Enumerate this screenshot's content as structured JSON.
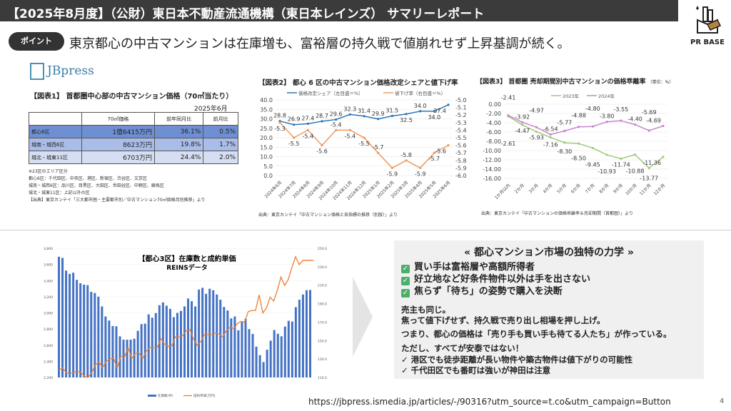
{
  "header": {
    "title": "【2025年8月度】（公財）東日本不動産流通機構（東日本レインズ） サマリーレポート",
    "logo_text": "PR BASE"
  },
  "point": {
    "badge": "ポイント",
    "text": "東京都心の中古マンションは在庫増も、富裕層の持久戦で値崩れせず上昇基調が続く。"
  },
  "source_logo": "JBpress",
  "table1": {
    "title": "【図表1】 首都圏中心部の中古マンション価格（70㎡当たり）",
    "date": "2025年6月",
    "headers": [
      "",
      "70㎡価格",
      "前年同月比",
      "前月比"
    ],
    "rows": [
      [
        "都心6区",
        "1億6415万円",
        "36.1%",
        "0.5%"
      ],
      [
        "城南・城西6区",
        "8623万円",
        "19.8%",
        "1.7%"
      ],
      [
        "城北・城東11区",
        "6703万円",
        "24.4%",
        "2.0%"
      ]
    ],
    "row_colors": [
      "#6e8fd2",
      "#a9bde8",
      "#d5def3"
    ],
    "notes": [
      "※23区のエリア区分",
      "都心6区：千代田区、中央区、港区、新宿区、渋谷区、文京区",
      "城南・城西6区：品川区、目黒区、大田区、世田谷区、中野区、練馬区",
      "城北・城東11区：上記以外の区",
      "【出典】東京カンテイ「三大都市圏・主要都市別／中古マンション70㎡価格月別推移」より"
    ]
  },
  "chart_data": [
    {
      "type": "line",
      "title": "【図表2】 都心 6 区の中古マンション価格改定シェアと値下げ率",
      "categories": [
        "2024年6月",
        "2024年7月",
        "2024年8月",
        "2024年9月",
        "2024年10月",
        "2024年11月",
        "2024年12月",
        "2025年1月",
        "2025年2月",
        "2025年3月",
        "2025年4月",
        "2025年5月",
        "2025年6月"
      ],
      "series": [
        {
          "name": "価格改定シェア（左目盛＝%）",
          "axis": "left",
          "color": "#2e75b6",
          "values": [
            28.8,
            26.9,
            27.4,
            28.7,
            29.6,
            32.3,
            31.4,
            29.9,
            31.5,
            32.5,
            34.0,
            34.0,
            37.4
          ]
        },
        {
          "name": "値下げ率（右目盛＝%）",
          "axis": "right",
          "color": "#ed9a5e",
          "values": [
            -5.3,
            -5.5,
            -5.4,
            -5.6,
            -5.4,
            -5.4,
            -5.5,
            -5.7,
            -5.9,
            -5.8,
            -5.9,
            -5.7,
            -5.6
          ]
        }
      ],
      "ylim": [
        0,
        40
      ],
      "yticks": [
        "40.0",
        "35.0",
        "30.0",
        "25.0",
        "20.0",
        "15.0",
        "10.0",
        "5.0",
        "0.0"
      ],
      "y2lim": [
        -6.0,
        -5.0
      ],
      "y2ticks": [
        "-5.0",
        "-5.1",
        "-5.2",
        "-5.3",
        "-5.4",
        "-5.5",
        "-5.6",
        "-5.7",
        "-5.8",
        "-5.9",
        "-6.0"
      ],
      "legend": "top",
      "source": "出典：東京カンテイ「中古マンション価格と各指標の推移（別版）」より"
    },
    {
      "type": "line",
      "title": "【図表3】 首都圏 売却期間別中古マンションの価格乖離率",
      "unit": "（単位：%）",
      "categories": [
        "1か月以内",
        "2か月",
        "3か月",
        "4か月",
        "5か月",
        "6か月",
        "7か月",
        "8か月",
        "9か月",
        "10か月",
        "11か月",
        "12か月"
      ],
      "series": [
        {
          "name": "2023年",
          "color": "#9ccc7a",
          "values": [
            -2.61,
            -4.47,
            -5.93,
            -7.16,
            -8.3,
            -8.5,
            -9.45,
            -10.93,
            -11.74,
            -10.88,
            -13.77,
            -11.36
          ]
        },
        {
          "name": "2024年",
          "color": "#c985cf",
          "values": [
            -2.41,
            -3.92,
            -4.97,
            -6.54,
            -5.77,
            -4.88,
            -4.8,
            -3.8,
            -3.55,
            -4.4,
            -5.69,
            -4.69
          ]
        }
      ],
      "ylim": [
        -16,
        0
      ],
      "yticks": [
        "0.00",
        "-2.00",
        "-4.00",
        "-6.00",
        "-8.00",
        "-10.00",
        "-12.00",
        "-14.00",
        "-16.00"
      ],
      "legend": "top",
      "source": "出典：東京カンテイ「中古マンションの価格乖離率＆売却期間（首都圏）」より"
    },
    {
      "type": "bar+line",
      "title": "【都心3区】在庫数と成約単価",
      "subtitle": "REINSデータ",
      "series": [
        {
          "name": "在庫数(件)",
          "type": "bar",
          "axis": "left",
          "color": "#4472c4",
          "values": [
            3696,
            3681,
            3524,
            3483,
            3498,
            3409,
            3367,
            3350,
            3344,
            3261,
            3246,
            3201,
            3080,
            2956,
            2905,
            2837,
            2834,
            2710,
            2668,
            2668,
            2668,
            2680,
            2778,
            2861,
            2867,
            2982,
            2941,
            2997,
            3095,
            3130,
            3089,
            3050,
            2947,
            3000,
            3024,
            3080,
            3178,
            3145,
            3080,
            3290,
            3311,
            3237,
            3299,
            3281,
            3228,
            3163,
            3074,
            3030,
            2932,
            2956,
            2784,
            2887,
            2926,
            2799,
            2739,
            2582,
            2476,
            2390,
            2544,
            2656,
            2787,
            2742,
            2710,
            2831,
            2902,
            2893,
            3071,
            3163,
            3228,
            3281,
            3284
          ]
        },
        {
          "name": "成約単価(万円)",
          "type": "line",
          "axis": "right",
          "color": "#ed7d31",
          "values": [
            117.8,
            120.4,
            115.2,
            113.9,
            115.2,
            117.0,
            115.7,
            111.3,
            110.0,
            115.2,
            123.5,
            126.9,
            120.4,
            127.6,
            130.0,
            130.7,
            120.4,
            132.8,
            132.0,
            142.4,
            130.7,
            135.9,
            136.4,
            130.7,
            138.5,
            142.4,
            142.4,
            142.4,
            152.0,
            146.3,
            143.7,
            144.2,
            154.1,
            154.1,
            155.4,
            160.6,
            161.9,
            151.5,
            145.0,
            148.9,
            156.7,
            156.7,
            156.7,
            158.0,
            157.2,
            154.1,
            160.6,
            164.4,
            163.2,
            168.3,
            170.9,
            170.0,
            181.3,
            182.6,
            182.6,
            199.5,
            180.0,
            185.2,
            196.9,
            192.9,
            204.6,
            218.9,
            209.8,
            216.3,
            229.3,
            240.9,
            232.4,
            237.0,
            237.0,
            237.0,
            237.0
          ]
        }
      ],
      "ylim": [
        2200,
        3800
      ],
      "yticks": [
        "3,800",
        "3,600",
        "3,400",
        "3,200",
        "3,000",
        "2,800",
        "2,600",
        "2,400",
        "2,200"
      ],
      "y2lim": [
        110,
        250
      ],
      "y2ticks": [
        "250.0",
        "230.0",
        "210.0",
        "190.0",
        "170.0",
        "150.0",
        "130.0",
        "110.0"
      ],
      "legend": "bottom"
    }
  ],
  "insight": {
    "heading": "« 都心マンション市場の独特の力学 »",
    "checks": [
      "買い手は富裕層や高額所得者",
      "好立地など好条件物件以外は手を出さない",
      "焦らず「待ち」の姿勢で購入を決断"
    ],
    "lines": [
      "売主も同じ。",
      "焦って値下げせず、持久戦で売り出し相場を押し上げ。",
      "つまり、都心の価格は「売り手も買い手も待てる人たち」が作っている。",
      "ただし、すべてが安泰ではない！"
    ],
    "cautions": [
      "✓ 港区でも徒歩距離が長い物件や築古物件は値下がりの可能性",
      "✓ 千代田区でも番町は強いが神田は注意"
    ],
    "check_color": "#4caf6a"
  },
  "footer": {
    "url": "https://jbpress.ismedia.jp/articles/-/90316?utm_source=t.co&utm_campaign=Button",
    "page": "4"
  }
}
